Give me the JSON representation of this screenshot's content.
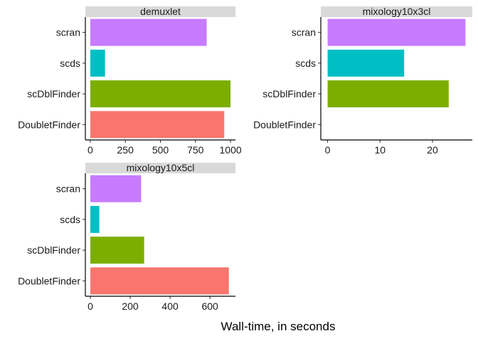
{
  "figure": {
    "xlabel": "Wall-time, in seconds"
  },
  "chart_data": [
    {
      "type": "bar",
      "orientation": "horizontal",
      "title": "demuxlet",
      "categories": [
        "scran",
        "scds",
        "scDblFinder",
        "DoubletFinder"
      ],
      "values": [
        830,
        105,
        1000,
        955
      ],
      "colors": [
        "#C77CFF",
        "#00BFC4",
        "#7CAE00",
        "#F8766D"
      ],
      "xlim": [
        -35,
        1035
      ],
      "xticks": [
        0,
        250,
        500,
        750,
        1000
      ]
    },
    {
      "type": "bar",
      "orientation": "horizontal",
      "title": "mixology10x3cl",
      "categories": [
        "scran",
        "scds",
        "scDblFinder",
        "DoubletFinder"
      ],
      "values": [
        26.3,
        14.6,
        23.1,
        null
      ],
      "colors": [
        "#C77CFF",
        "#00BFC4",
        "#7CAE00",
        "#F8766D"
      ],
      "xlim": [
        -1.3,
        27.6
      ],
      "xticks": [
        0,
        10,
        20
      ]
    },
    {
      "type": "bar",
      "orientation": "horizontal",
      "title": "mixology10x5cl",
      "categories": [
        "scran",
        "scds",
        "scDblFinder",
        "DoubletFinder"
      ],
      "values": [
        255,
        45,
        270,
        695
      ],
      "colors": [
        "#C77CFF",
        "#00BFC4",
        "#7CAE00",
        "#F8766D"
      ],
      "xlim": [
        -25,
        728
      ],
      "xticks": [
        0,
        200,
        400,
        600
      ]
    }
  ]
}
